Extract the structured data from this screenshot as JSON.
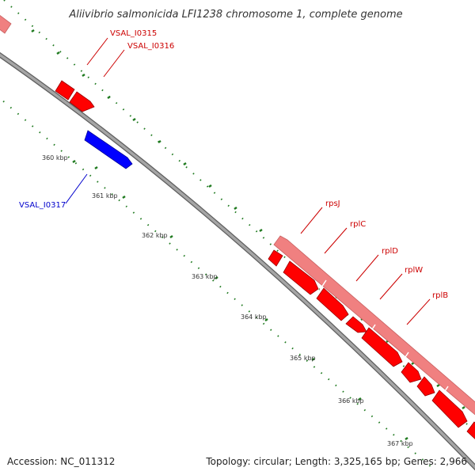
{
  "title": "Aliivibrio salmonicida LFI1238 chromosome 1, complete genome",
  "footer": {
    "accession": "Accession: NC_011312",
    "summary": "Topology: circular; Length: 3,325,165 bp; Genes: 2,966"
  },
  "colors": {
    "backbone": "#7f7f7f",
    "tick": "#1f7a1f",
    "forward_gene": "#ff0000",
    "reverse_gene": "#0000ff",
    "operon_band": "#f08080",
    "forward_label": "#cc0000",
    "reverse_label": "#0000cc"
  },
  "ticks": {
    "labels": [
      "360 kbp",
      "361 kbp",
      "362 kbp",
      "363 kbp",
      "364 kbp",
      "365 kbp",
      "366 kbp",
      "367 kbp"
    ]
  },
  "genes": {
    "forward_labels": [
      "VSAL_I0315",
      "VSAL_I0316",
      "rpsJ",
      "rplC",
      "rplD",
      "rplW",
      "rplB"
    ],
    "reverse_labels": [
      "VSAL_I0317"
    ]
  }
}
